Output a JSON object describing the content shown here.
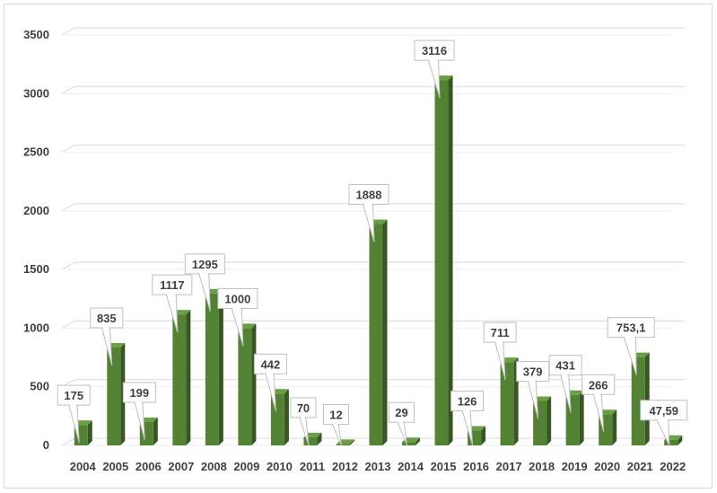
{
  "chart_data": {
    "type": "bar",
    "title": "",
    "xlabel": "",
    "ylabel": "",
    "categories": [
      "2004",
      "2005",
      "2006",
      "2007",
      "2008",
      "2009",
      "2010",
      "2011",
      "2012",
      "2013",
      "2014",
      "2015",
      "2016",
      "2017",
      "2018",
      "2019",
      "2020",
      "2021",
      "2022"
    ],
    "values": [
      175,
      835,
      199,
      1117,
      1295,
      1000,
      442,
      70,
      12,
      1888,
      29,
      3116,
      126,
      711,
      379,
      431,
      266,
      753.1,
      47.59
    ],
    "value_labels": [
      "175",
      "835",
      "199",
      "1117",
      "1295",
      "1000",
      "442",
      "70",
      "12",
      "1888",
      "29",
      "3116",
      "126",
      "711",
      "379",
      "431",
      "266",
      "753,1",
      "47,59"
    ],
    "ylim": [
      0,
      3500
    ],
    "yticks": [
      "0",
      "500",
      "1000",
      "1500",
      "2000",
      "2500",
      "3000",
      "3500"
    ],
    "grid": true,
    "legend": "none",
    "colors": {
      "bar_front": "#548235",
      "bar_side": "#375623",
      "bar_top": "#6a9f45",
      "grid": "#d9d9d9",
      "label_text": "#404040",
      "callout_border": "#bfbfbf"
    }
  }
}
